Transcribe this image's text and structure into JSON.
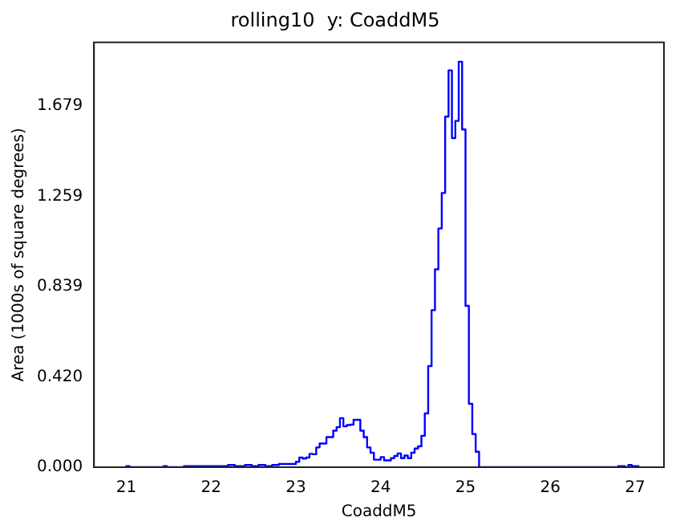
{
  "chart_data": {
    "type": "histogram",
    "title": "rolling10  y: CoaddM5",
    "xlabel": "CoaddM5",
    "ylabel": "Area (1000s of square degrees)",
    "color": "#0000ff",
    "bins": [
      21.0,
      21.04,
      21.44,
      21.48,
      21.68,
      22.0,
      22.2,
      22.28,
      22.4,
      22.48,
      22.56,
      22.64,
      22.72,
      22.8,
      23.0,
      23.04,
      23.08,
      23.12,
      23.16,
      23.2,
      23.24,
      23.28,
      23.32,
      23.36,
      23.4,
      23.44,
      23.48,
      23.52,
      23.56,
      23.6,
      23.64,
      23.68,
      23.72,
      23.76,
      23.8,
      23.84,
      23.88,
      23.92,
      23.96,
      24.0,
      24.04,
      24.08,
      24.12,
      24.16,
      24.2,
      24.24,
      24.28,
      24.32,
      24.36,
      24.4,
      24.44,
      24.48,
      24.52,
      24.56,
      24.6,
      24.64,
      24.68,
      24.72,
      24.76,
      24.8,
      24.84,
      24.88,
      24.92,
      24.96,
      25.0,
      25.04,
      25.08,
      25.12,
      25.16,
      26.8,
      26.88,
      26.92,
      26.96,
      27.04
    ],
    "values": [
      0.005,
      0,
      0.005,
      0,
      0.005,
      0.005,
      0.01,
      0.005,
      0.01,
      0.005,
      0.01,
      0.005,
      0.01,
      0.015,
      0.025,
      0.045,
      0.04,
      0.045,
      0.062,
      0.06,
      0.092,
      0.11,
      0.11,
      0.14,
      0.14,
      0.17,
      0.186,
      0.228,
      0.19,
      0.196,
      0.198,
      0.22,
      0.22,
      0.17,
      0.14,
      0.092,
      0.067,
      0.035,
      0.035,
      0.047,
      0.032,
      0.032,
      0.042,
      0.052,
      0.064,
      0.042,
      0.054,
      0.042,
      0.067,
      0.087,
      0.097,
      0.146,
      0.25,
      0.47,
      0.73,
      0.92,
      1.11,
      1.275,
      1.63,
      1.845,
      1.53,
      1.61,
      1.885,
      1.57,
      0.75,
      0.295,
      0.154,
      0.072,
      0,
      0.005,
      0,
      0.01,
      0.005
    ],
    "xlim": [
      20.62,
      27.34
    ],
    "xticks": [
      21,
      22,
      23,
      24,
      25,
      26,
      27
    ],
    "ylim": [
      0,
      1.975
    ],
    "yticks": [
      {
        "value": 0,
        "label": "0.000"
      },
      {
        "value": 0.42,
        "label": "0.420"
      },
      {
        "value": 0.839,
        "label": "0.839"
      },
      {
        "value": 1.259,
        "label": "1.259"
      },
      {
        "value": 1.679,
        "label": "1.679"
      }
    ],
    "grid": false,
    "legend": false
  }
}
